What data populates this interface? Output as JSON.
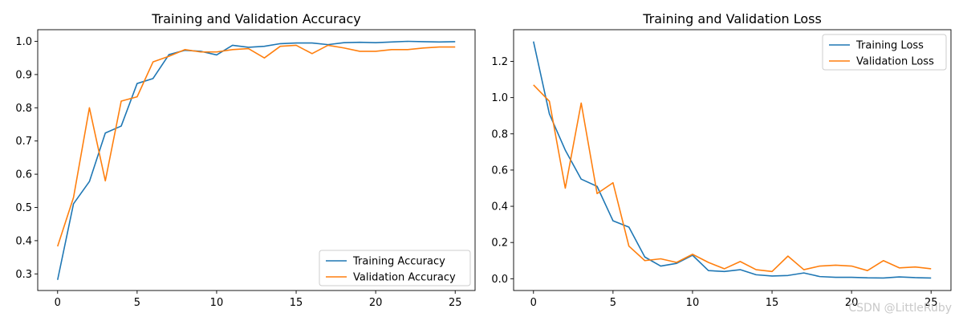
{
  "chart_data": [
    {
      "type": "line",
      "title": "Training and Validation Accuracy",
      "xlabel": "",
      "ylabel": "",
      "xlim": [
        -1.25,
        26.25
      ],
      "ylim": [
        0.25,
        1.035
      ],
      "xticks": [
        0,
        5,
        10,
        15,
        20,
        25
      ],
      "yticks": [
        0.3,
        0.4,
        0.5,
        0.6,
        0.7,
        0.8,
        0.9,
        1.0
      ],
      "ytick_labels": [
        "0.3",
        "0.4",
        "0.5",
        "0.6",
        "0.7",
        "0.8",
        "0.9",
        "1.0"
      ],
      "grid": false,
      "legend_position": "bottom-right",
      "x": [
        0,
        1,
        2,
        3,
        4,
        5,
        6,
        7,
        8,
        9,
        10,
        11,
        12,
        13,
        14,
        15,
        16,
        17,
        18,
        19,
        20,
        21,
        22,
        23,
        24,
        25
      ],
      "series": [
        {
          "name": "Training Accuracy",
          "color": "#1f77b4",
          "values": [
            0.282,
            0.511,
            0.578,
            0.724,
            0.745,
            0.873,
            0.888,
            0.96,
            0.973,
            0.97,
            0.959,
            0.988,
            0.982,
            0.985,
            0.993,
            0.995,
            0.995,
            0.99,
            0.996,
            0.997,
            0.996,
            0.998,
            1.0,
            0.999,
            0.998,
            0.999
          ]
        },
        {
          "name": "Validation Accuracy",
          "color": "#ff7f0e",
          "values": [
            0.383,
            0.53,
            0.8,
            0.58,
            0.82,
            0.833,
            0.938,
            0.955,
            0.975,
            0.968,
            0.968,
            0.975,
            0.978,
            0.95,
            0.985,
            0.988,
            0.963,
            0.988,
            0.98,
            0.97,
            0.97,
            0.975,
            0.975,
            0.98,
            0.983,
            0.983
          ]
        }
      ]
    },
    {
      "type": "line",
      "title": "Training and Validation Loss",
      "xlabel": "",
      "ylabel": "",
      "xlim": [
        -1.25,
        26.25
      ],
      "ylim": [
        -0.065,
        1.375
      ],
      "xticks": [
        0,
        5,
        10,
        15,
        20,
        25
      ],
      "yticks": [
        0.0,
        0.2,
        0.4,
        0.6,
        0.8,
        1.0,
        1.2
      ],
      "ytick_labels": [
        "0.0",
        "0.2",
        "0.4",
        "0.6",
        "0.8",
        "1.0",
        "1.2"
      ],
      "grid": false,
      "legend_position": "top-right",
      "x": [
        0,
        1,
        2,
        3,
        4,
        5,
        6,
        7,
        8,
        9,
        10,
        11,
        12,
        13,
        14,
        15,
        16,
        17,
        18,
        19,
        20,
        21,
        22,
        23,
        24,
        25
      ],
      "series": [
        {
          "name": "Training Loss",
          "color": "#1f77b4",
          "values": [
            1.31,
            0.91,
            0.71,
            0.55,
            0.51,
            0.32,
            0.285,
            0.12,
            0.07,
            0.085,
            0.13,
            0.045,
            0.04,
            0.05,
            0.022,
            0.015,
            0.018,
            0.032,
            0.012,
            0.008,
            0.008,
            0.005,
            0.004,
            0.01,
            0.006,
            0.004
          ]
        },
        {
          "name": "Validation Loss",
          "color": "#ff7f0e",
          "values": [
            1.07,
            0.98,
            0.5,
            0.97,
            0.47,
            0.53,
            0.18,
            0.1,
            0.11,
            0.09,
            0.135,
            0.09,
            0.055,
            0.095,
            0.05,
            0.04,
            0.125,
            0.05,
            0.07,
            0.075,
            0.07,
            0.045,
            0.1,
            0.06,
            0.065,
            0.055
          ]
        }
      ]
    }
  ],
  "watermark": "CSDN @LittleRuby"
}
